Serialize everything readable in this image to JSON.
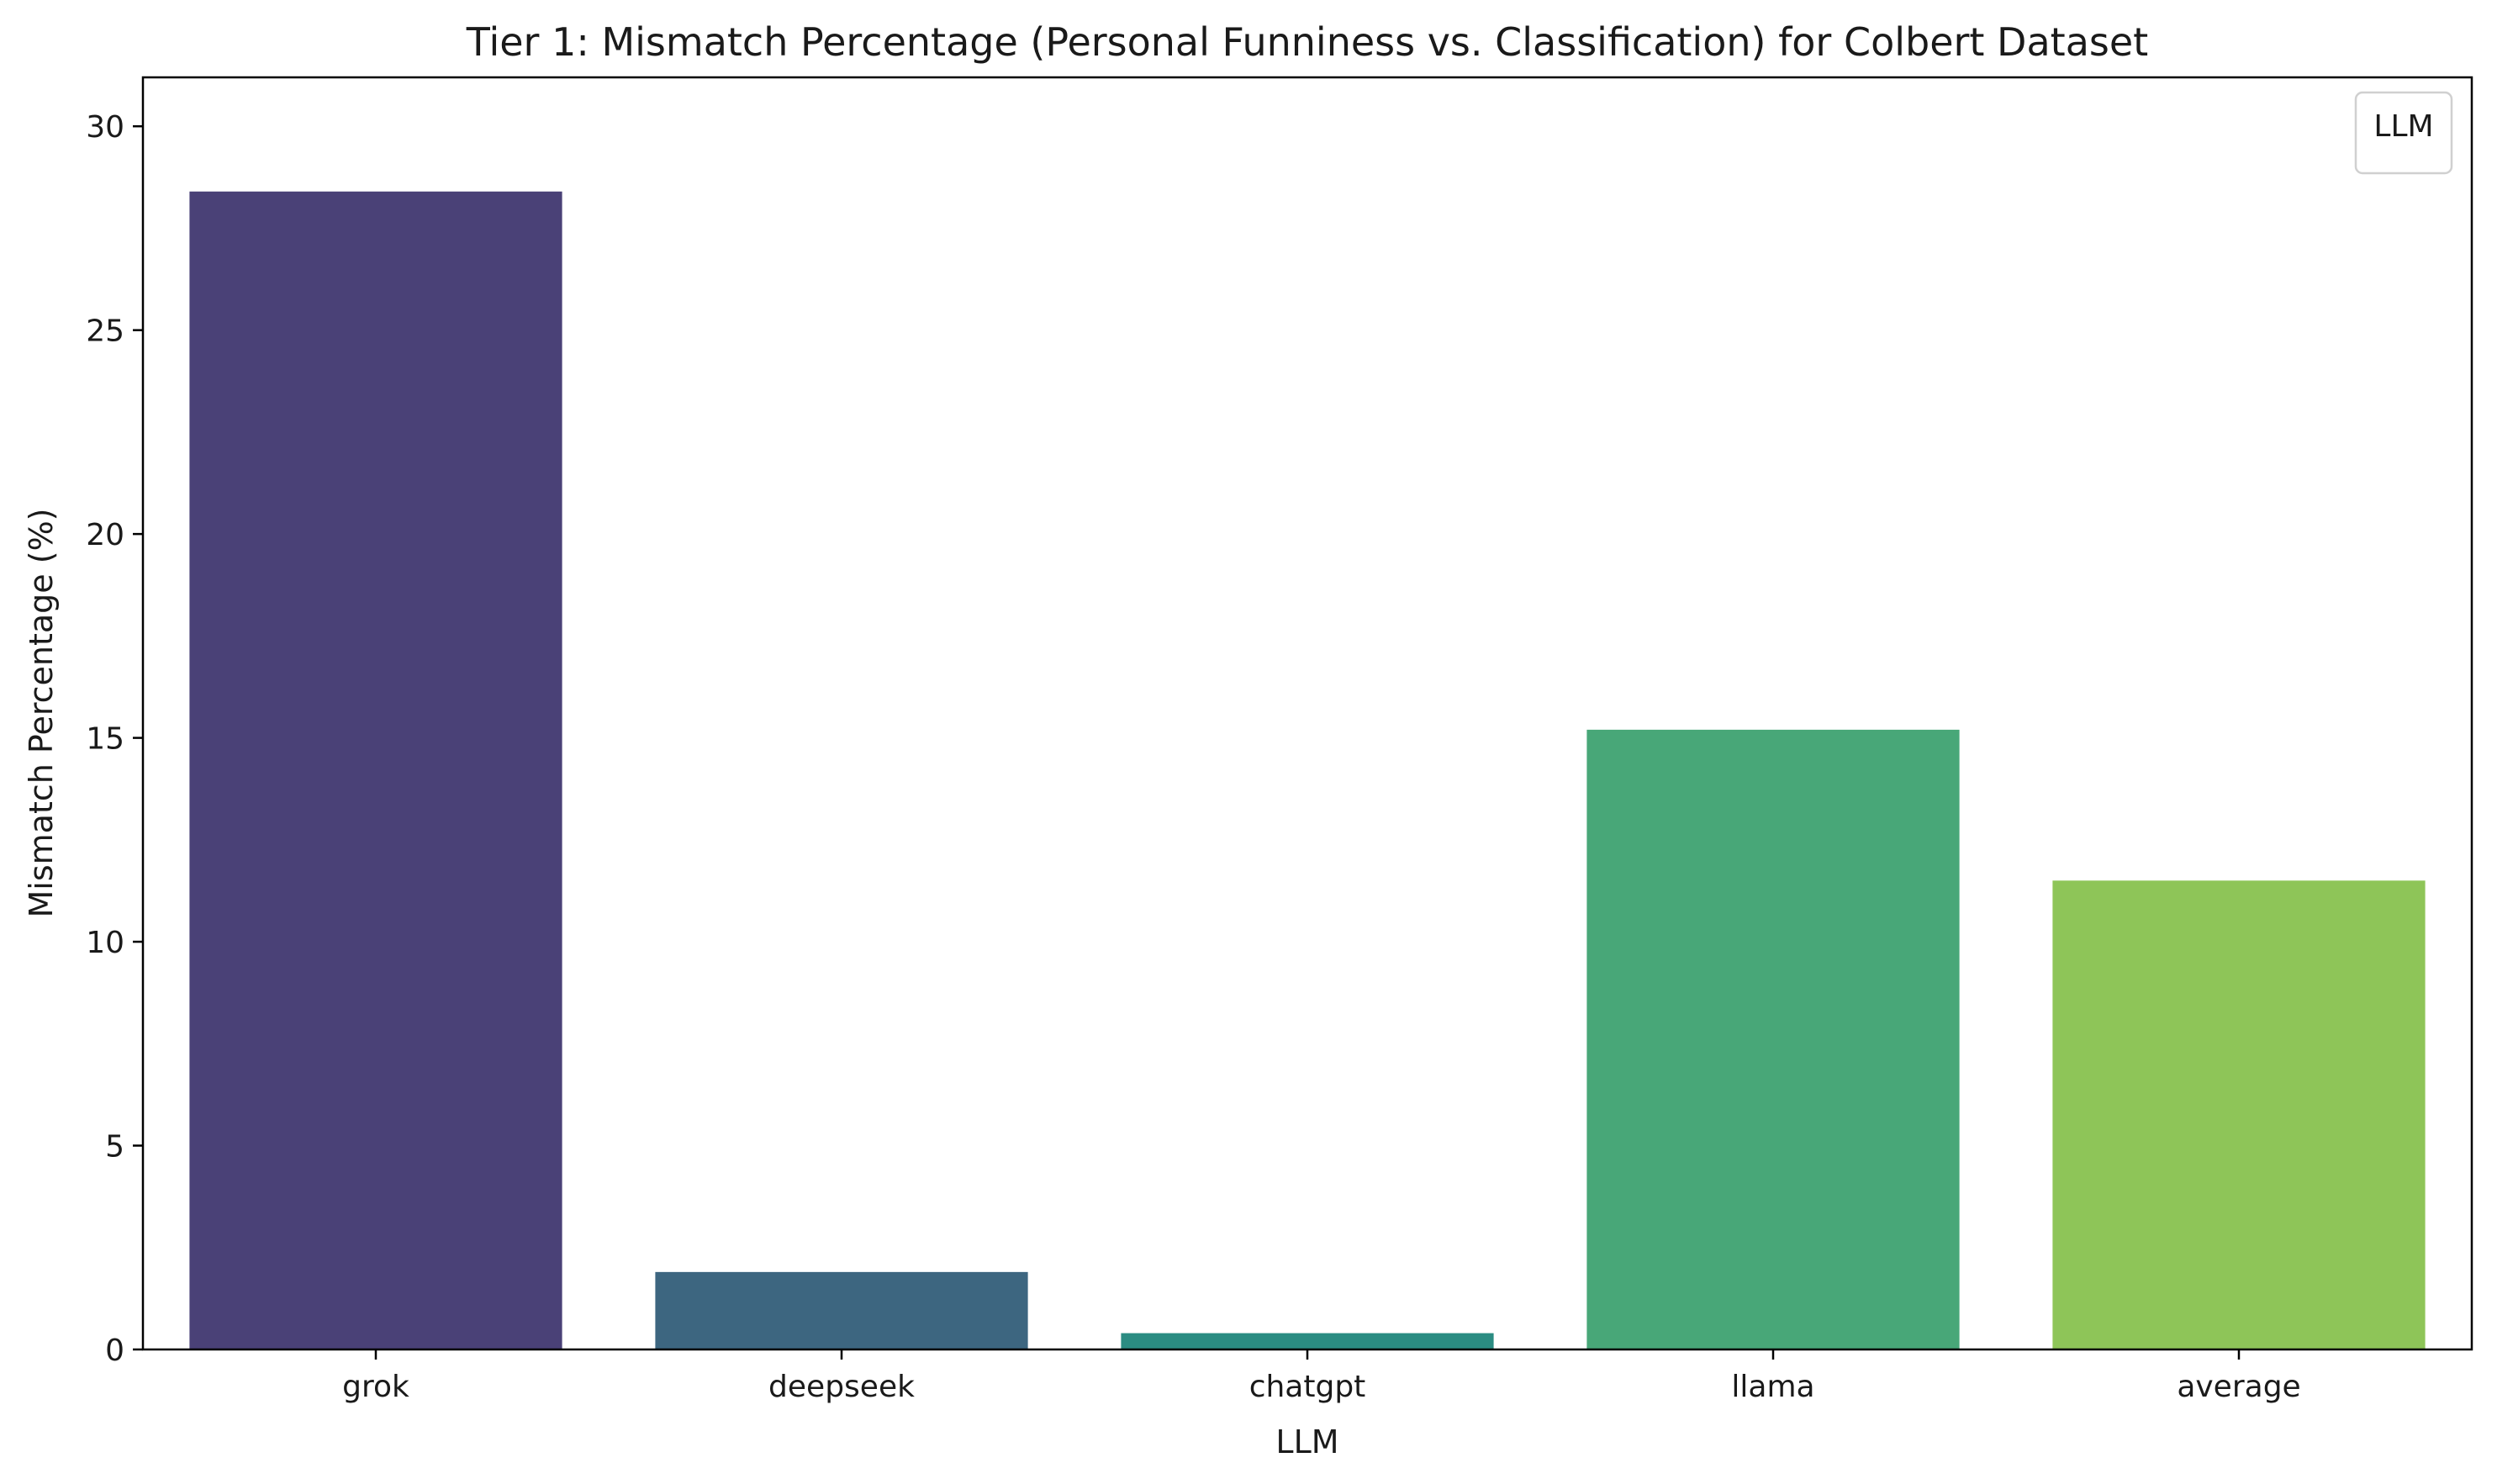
{
  "chart_data": {
    "type": "bar",
    "title": "Tier 1: Mismatch Percentage (Personal Funniness vs. Classification) for Colbert Dataset",
    "xlabel": "LLM",
    "ylabel": "Mismatch Percentage (%)",
    "categories": [
      "grok",
      "deepseek",
      "chatgpt",
      "llama",
      "average"
    ],
    "values": [
      28.4,
      1.9,
      0.4,
      15.2,
      11.5
    ],
    "colors": [
      "#4a4177",
      "#3d6680",
      "#2b8c82",
      "#48a778",
      "#8ec558"
    ],
    "ylim": [
      0,
      31.2
    ],
    "yticks": [
      0,
      5,
      10,
      15,
      20,
      25,
      30
    ],
    "grid": false,
    "legend": {
      "title": "LLM",
      "placement": "top-right"
    }
  }
}
